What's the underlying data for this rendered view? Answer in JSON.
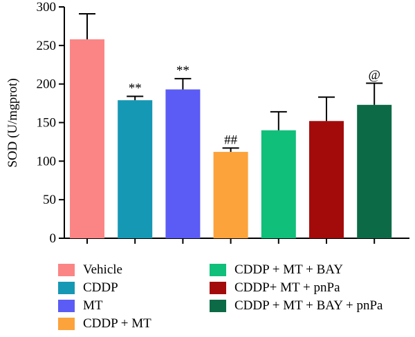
{
  "chart_data": {
    "type": "bar",
    "ylabel": "SOD (U/mgprot)",
    "xlabel": "",
    "ylim": [
      0,
      300
    ],
    "yticks": [
      0,
      50,
      100,
      150,
      200,
      250,
      300
    ],
    "grid": false,
    "legend_position": "bottom",
    "categories": [
      "Vehicle",
      "CDDP",
      "MT",
      "CDDP + MT",
      "CDDP + MT + BAY",
      "CDDP+ MT + pnPa",
      "CDDP + MT + BAY + pnPa"
    ],
    "values": [
      258,
      179,
      193,
      112,
      140,
      152,
      173
    ],
    "error_upper": [
      291,
      184,
      207,
      117,
      164,
      183,
      201
    ],
    "annotations": [
      "",
      "**",
      "**",
      "##",
      "",
      "",
      "@"
    ],
    "colors": [
      "#fb8585",
      "#1598b4",
      "#5b5cf5",
      "#fca33c",
      "#0fbf7a",
      "#a30b0b",
      "#0d6a46"
    ]
  }
}
